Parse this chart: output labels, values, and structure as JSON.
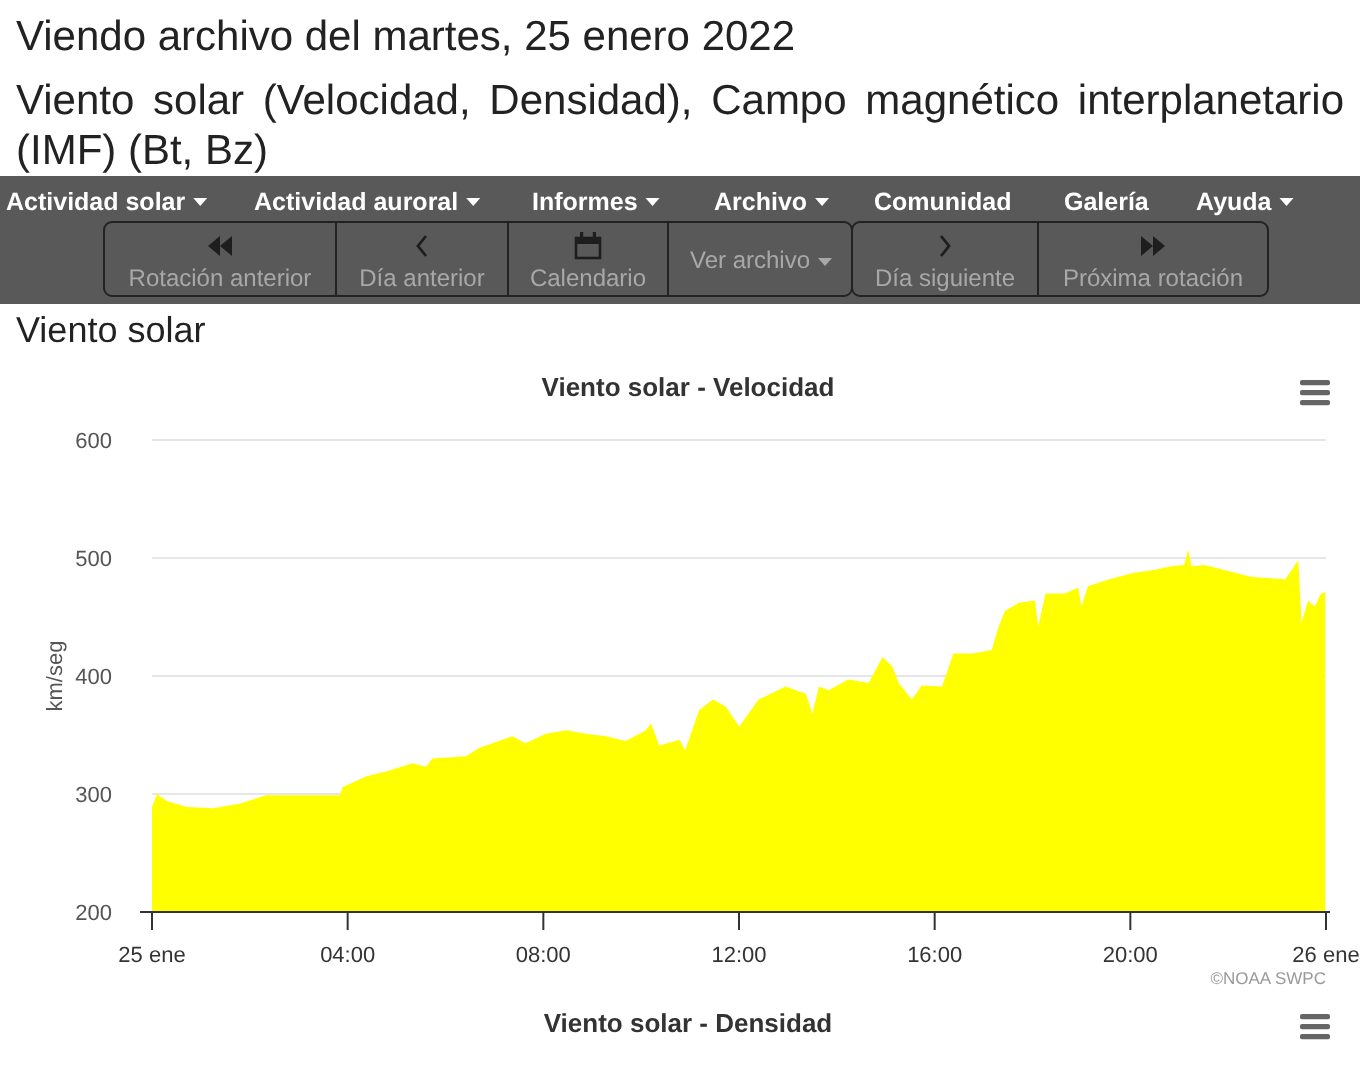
{
  "chart_data": {
    "type": "area",
    "title": "Viento solar - Velocidad",
    "ylabel": "km/seg",
    "x": [
      "2022-01-25T00:00",
      "2022-01-25T00:06",
      "2022-01-25T00:18",
      "2022-01-25T00:43",
      "2022-01-25T01:15",
      "2022-01-25T01:48",
      "2022-01-25T02:20",
      "2022-01-25T03:00",
      "2022-01-25T03:50",
      "2022-01-25T03:54",
      "2022-01-25T04:23",
      "2022-01-25T04:47",
      "2022-01-25T05:20",
      "2022-01-25T05:36",
      "2022-01-25T05:44",
      "2022-01-25T06:25",
      "2022-01-25T06:41",
      "2022-01-25T07:22",
      "2022-01-25T07:38",
      "2022-01-25T08:03",
      "2022-01-25T08:28",
      "2022-01-25T08:52",
      "2022-01-25T09:17",
      "2022-01-25T09:41",
      "2022-01-25T10:06",
      "2022-01-25T10:12",
      "2022-01-25T10:22",
      "2022-01-25T10:47",
      "2022-01-25T10:54",
      "2022-01-25T11:11",
      "2022-01-25T11:28",
      "2022-01-25T11:44",
      "2022-01-25T12:00",
      "2022-01-25T12:24",
      "2022-01-25T12:57",
      "2022-01-25T13:22",
      "2022-01-25T13:30",
      "2022-01-25T13:38",
      "2022-01-25T13:50",
      "2022-01-25T14:14",
      "2022-01-25T14:39",
      "2022-01-25T14:56",
      "2022-01-25T15:08",
      "2022-01-25T15:16",
      "2022-01-25T15:32",
      "2022-01-25T15:44",
      "2022-01-25T16:09",
      "2022-01-25T16:23",
      "2022-01-25T16:46",
      "2022-01-25T17:10",
      "2022-01-25T17:17",
      "2022-01-25T17:26",
      "2022-01-25T17:43",
      "2022-01-25T18:03",
      "2022-01-25T18:07",
      "2022-01-25T18:16",
      "2022-01-25T18:40",
      "2022-01-25T18:56",
      "2022-01-25T19:00",
      "2022-01-25T19:08",
      "2022-01-25T19:29",
      "2022-01-25T20:02",
      "2022-01-25T20:30",
      "2022-01-25T20:50",
      "2022-01-25T21:06",
      "2022-01-25T21:11",
      "2022-01-25T21:15",
      "2022-01-25T21:31",
      "2022-01-25T22:29",
      "2022-01-25T23:10",
      "2022-01-25T23:26",
      "2022-01-25T23:30",
      "2022-01-25T23:38",
      "2022-01-25T23:46",
      "2022-01-25T23:54",
      "2022-01-25T23:59"
    ],
    "series": [
      {
        "color": "#ffff00",
        "values": [
          289,
          300,
          294,
          289,
          288,
          292,
          299,
          299,
          299,
          306,
          315,
          319,
          326,
          323,
          330,
          332,
          339,
          349,
          343,
          351,
          354,
          351,
          349,
          345,
          354,
          360,
          341,
          346,
          337,
          371,
          380,
          374,
          357,
          380,
          391,
          385,
          368,
          391,
          388,
          397,
          394,
          416,
          408,
          394,
          380,
          392,
          391,
          419,
          419,
          422,
          439,
          455,
          462,
          464,
          442,
          470,
          470,
          475,
          459,
          476,
          481,
          487,
          490,
          493,
          494,
          507,
          493,
          494,
          484,
          482,
          498,
          445,
          464,
          459,
          470,
          471
        ]
      }
    ],
    "xlim": [
      "2022-01-25T00:00",
      "2022-01-26T00:00"
    ],
    "xticks": [
      {
        "value": "2022-01-25T00:00",
        "label": "25 ene"
      },
      {
        "value": "2022-01-25T04:00",
        "label": "04:00"
      },
      {
        "value": "2022-01-25T08:00",
        "label": "08:00"
      },
      {
        "value": "2022-01-25T12:00",
        "label": "12:00"
      },
      {
        "value": "2022-01-25T16:00",
        "label": "16:00"
      },
      {
        "value": "2022-01-25T20:00",
        "label": "20:00"
      },
      {
        "value": "2022-01-26T00:00",
        "label": "26 ene"
      }
    ],
    "ylim": [
      200,
      600
    ],
    "yticks": [
      200,
      300,
      400,
      500,
      600
    ],
    "grid": "y",
    "annotations": [
      "Viendo archivo del martes, 25 enero 2022",
      "Viento solar (Velocidad, Densidad), Campo magnético interplanetario (IMF) (Bt, Bz)",
      "Actividad solar",
      "Actividad auroral",
      "Informes",
      "Archivo",
      "Comunidad",
      "Galería",
      "Ayuda",
      "Rotación anterior",
      "Día anterior",
      "Calendario",
      "Ver archivo",
      "Día siguiente",
      "Próxima rotación",
      "Viento solar",
      "©NOAA SWPC",
      "Viento solar - Densidad"
    ]
  }
}
